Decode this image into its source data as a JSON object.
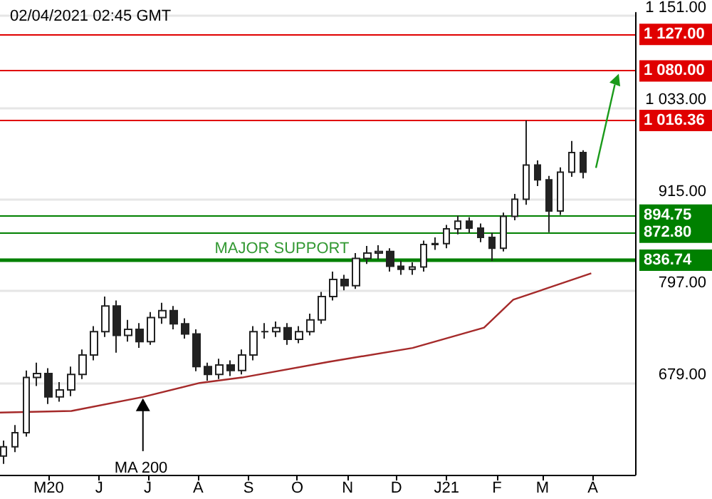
{
  "chart_data": {
    "type": "candlestick",
    "title": "02/04/2021 02:45 GMT",
    "color": "#222222",
    "x": [
      "2020-04-03",
      "2020-04-10",
      "2020-04-17",
      "2020-04-24",
      "2020-05-01",
      "2020-05-08",
      "2020-05-15",
      "2020-05-22",
      "2020-05-29",
      "2020-06-05",
      "2020-06-12",
      "2020-06-19",
      "2020-06-26",
      "2020-07-03",
      "2020-07-10",
      "2020-07-17",
      "2020-07-24",
      "2020-07-31",
      "2020-08-07",
      "2020-08-14",
      "2020-08-21",
      "2020-08-28",
      "2020-09-04",
      "2020-09-11",
      "2020-09-18",
      "2020-09-25",
      "2020-10-02",
      "2020-10-09",
      "2020-10-16",
      "2020-10-23",
      "2020-10-30",
      "2020-11-06",
      "2020-11-13",
      "2020-11-20",
      "2020-11-27",
      "2020-12-04",
      "2020-12-11",
      "2020-12-18",
      "2020-12-25",
      "2021-01-01",
      "2021-01-08",
      "2021-01-15",
      "2021-01-22",
      "2021-01-29",
      "2021-02-05",
      "2021-02-12",
      "2021-02-19",
      "2021-02-26",
      "2021-03-05",
      "2021-03-12",
      "2021-03-19",
      "2021-03-26"
    ],
    "ohlc": [
      [
        585,
        605,
        575,
        597
      ],
      [
        597,
        625,
        590,
        615
      ],
      [
        615,
        695,
        610,
        686
      ],
      [
        686,
        705,
        675,
        691
      ],
      [
        691,
        698,
        652,
        661
      ],
      [
        661,
        680,
        655,
        670
      ],
      [
        670,
        700,
        662,
        690
      ],
      [
        690,
        722,
        684,
        715
      ],
      [
        715,
        752,
        708,
        745
      ],
      [
        745,
        790,
        738,
        778
      ],
      [
        778,
        785,
        718,
        740
      ],
      [
        740,
        760,
        732,
        748
      ],
      [
        748,
        756,
        724,
        732
      ],
      [
        732,
        770,
        728,
        763
      ],
      [
        763,
        782,
        755,
        772
      ],
      [
        772,
        778,
        748,
        755
      ],
      [
        755,
        762,
        736,
        742
      ],
      [
        742,
        748,
        694,
        700
      ],
      [
        700,
        705,
        682,
        690
      ],
      [
        690,
        710,
        684,
        702
      ],
      [
        702,
        708,
        688,
        695
      ],
      [
        695,
        722,
        690,
        715
      ],
      [
        715,
        752,
        708,
        745
      ],
      [
        745,
        756,
        736,
        745
      ],
      [
        745,
        758,
        738,
        750
      ],
      [
        750,
        756,
        728,
        735
      ],
      [
        735,
        752,
        730,
        745
      ],
      [
        745,
        768,
        740,
        760
      ],
      [
        760,
        796,
        755,
        790
      ],
      [
        790,
        822,
        785,
        812
      ],
      [
        812,
        818,
        798,
        804
      ],
      [
        804,
        846,
        800,
        839
      ],
      [
        839,
        855,
        832,
        846
      ],
      [
        846,
        856,
        838,
        848
      ],
      [
        848,
        852,
        822,
        829
      ],
      [
        829,
        836,
        818,
        825
      ],
      [
        825,
        834,
        818,
        828
      ],
      [
        828,
        862,
        822,
        857
      ],
      [
        857,
        866,
        850,
        858
      ],
      [
        858,
        882,
        852,
        877
      ],
      [
        877,
        894,
        870,
        887
      ],
      [
        887,
        892,
        872,
        878
      ],
      [
        878,
        884,
        860,
        866
      ],
      [
        866,
        872,
        836,
        852
      ],
      [
        852,
        898,
        848,
        893
      ],
      [
        893,
        922,
        888,
        915
      ],
      [
        915,
        1016.36,
        908,
        959
      ],
      [
        959,
        965,
        932,
        940
      ],
      [
        940,
        945,
        872.8,
        900
      ],
      [
        900,
        956,
        895,
        950
      ],
      [
        950,
        990,
        944,
        975
      ],
      [
        975,
        978,
        942,
        950
      ]
    ],
    "series": [
      {
        "name": "MA 200",
        "type": "line",
        "color": "#a52a2a",
        "x": [
          "2020-04-01",
          "2020-05-15",
          "2020-06-28",
          "2020-08-02",
          "2020-08-28",
          "2020-10-20",
          "2020-12-11",
          "2021-01-24",
          "2021-02-11",
          "2021-02-28",
          "2021-03-31"
        ],
        "values": [
          641,
          643,
          661,
          679,
          686,
          706,
          724,
          750,
          786,
          798,
          820
        ]
      }
    ],
    "xlim": [
      "2020-04-01",
      "2021-04-27"
    ],
    "xticks": [
      {
        "value": "2020-05-01",
        "label": "M20"
      },
      {
        "value": "2020-06-01",
        "label": "J"
      },
      {
        "value": "2020-07-01",
        "label": "J"
      },
      {
        "value": "2020-08-01",
        "label": "A"
      },
      {
        "value": "2020-09-01",
        "label": "S"
      },
      {
        "value": "2020-10-01",
        "label": "O"
      },
      {
        "value": "2020-11-01",
        "label": "N"
      },
      {
        "value": "2020-12-01",
        "label": "D"
      },
      {
        "value": "2021-01-01",
        "label": "J21"
      },
      {
        "value": "2021-02-01",
        "label": "F"
      },
      {
        "value": "2021-03-01",
        "label": "M"
      },
      {
        "value": "2021-04-01",
        "label": "A"
      }
    ],
    "ylim": [
      561,
      1155
    ],
    "yticks": [
      {
        "value": 679,
        "label": "679.00"
      },
      {
        "value": 797,
        "label": "797.00"
      },
      {
        "value": 915,
        "label": "915.00"
      },
      {
        "value": 1033,
        "label": "1 033.00"
      },
      {
        "value": 1151,
        "label": "1 151.00"
      }
    ],
    "grid": "y",
    "ref_lines": [
      {
        "axis": "y",
        "value": 1127,
        "label": "1 127.00",
        "color": "#e00000"
      },
      {
        "axis": "y",
        "value": 1080,
        "label": "1 080.00",
        "color": "#e00000"
      },
      {
        "axis": "y",
        "value": 1016.36,
        "label": "1 016.36",
        "color": "#e00000"
      },
      {
        "axis": "y",
        "value": 894.75,
        "label": "894.75",
        "color": "#008000"
      },
      {
        "axis": "y",
        "value": 872.8,
        "label": "872.80",
        "color": "#008000"
      },
      {
        "axis": "y",
        "value": 836.74,
        "label": "836.74",
        "color": "#008000"
      }
    ],
    "annotations": [
      {
        "text": "MAJOR SUPPORT",
        "x": "2020-08-12",
        "y": 836.74
      }
    ]
  }
}
